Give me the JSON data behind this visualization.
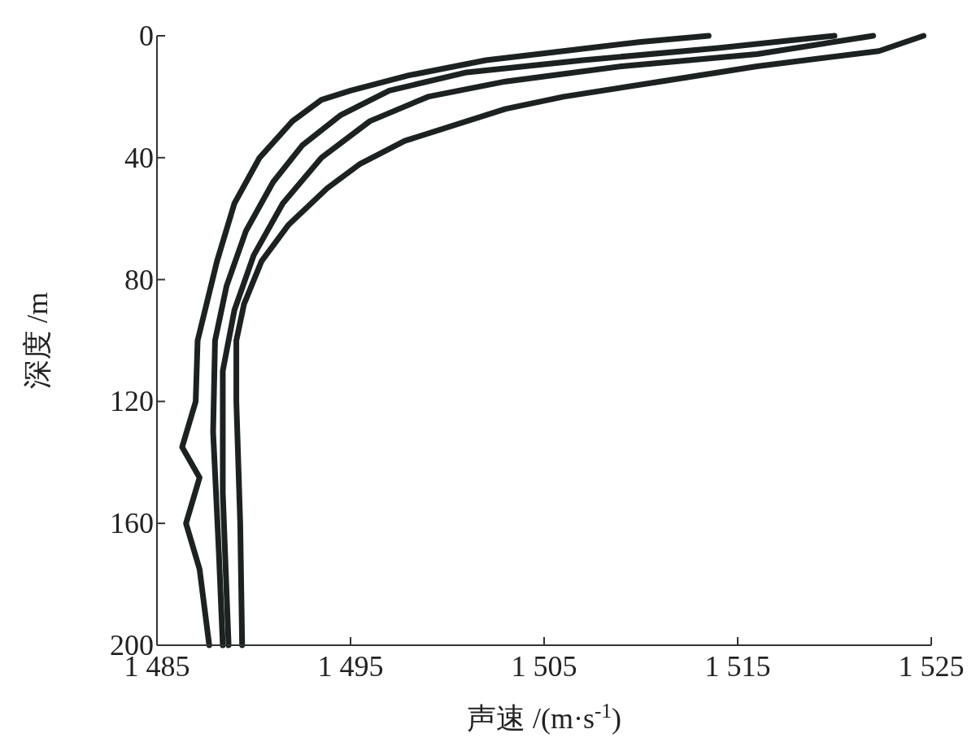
{
  "chart_data": {
    "type": "line",
    "xlabel": "声速 /(m·s$^{-1}$)",
    "ylabel": "深度 /m",
    "xlim": [
      1485,
      1525
    ],
    "ylim": [
      200,
      0
    ],
    "xticks": [
      {
        "value": 1485,
        "label": "1 485"
      },
      {
        "value": 1495,
        "label": "1 495"
      },
      {
        "value": 1505,
        "label": "1 505"
      },
      {
        "value": 1515,
        "label": "1 515"
      },
      {
        "value": 1525,
        "label": "1 525"
      }
    ],
    "yticks": [
      0,
      40,
      80,
      120,
      160,
      200
    ],
    "series": [
      {
        "color": "#1c2222",
        "x": [
          1513.5,
          1510,
          1506,
          1502,
          1498,
          1495,
          1493.5,
          1492,
          1490.3,
          1489,
          1488.1,
          1487.1,
          1487,
          1486.3,
          1487.2,
          1486.5,
          1487.2,
          1487.7
        ],
        "values": [
          0,
          2,
          5,
          8,
          13,
          18,
          21,
          28,
          40,
          55,
          74,
          100,
          120,
          135,
          145,
          160,
          175,
          200
        ]
      },
      {
        "color": "#1c2222",
        "x": [
          1524.6,
          1522.3,
          1516,
          1511,
          1506,
          1503,
          1497.8,
          1495.5,
          1493.8,
          1491.8,
          1490.4,
          1489.5,
          1489.1,
          1489.1,
          1489.3,
          1489.4
        ],
        "values": [
          0,
          5,
          10,
          15,
          20,
          24,
          34.5,
          42,
          50,
          62,
          74,
          88,
          100,
          120,
          160,
          200
        ]
      },
      {
        "color": "#1c2222",
        "x": [
          1520,
          1514,
          1507,
          1501,
          1497,
          1494.5,
          1492.5,
          1491,
          1489.6,
          1488.6,
          1488,
          1487.9,
          1488.2,
          1488.4
        ],
        "values": [
          0,
          4,
          8,
          12,
          18,
          26,
          36,
          48,
          64,
          82,
          100,
          130,
          170,
          200
        ]
      },
      {
        "color": "#1c2222",
        "x": [
          1522,
          1516,
          1509,
          1503,
          1499,
          1496,
          1493.5,
          1491.5,
          1490,
          1489,
          1488.4,
          1488.4,
          1488.7
        ],
        "values": [
          0,
          6,
          10,
          15,
          20,
          28,
          40,
          55,
          72,
          90,
          110,
          150,
          200
        ]
      }
    ]
  }
}
